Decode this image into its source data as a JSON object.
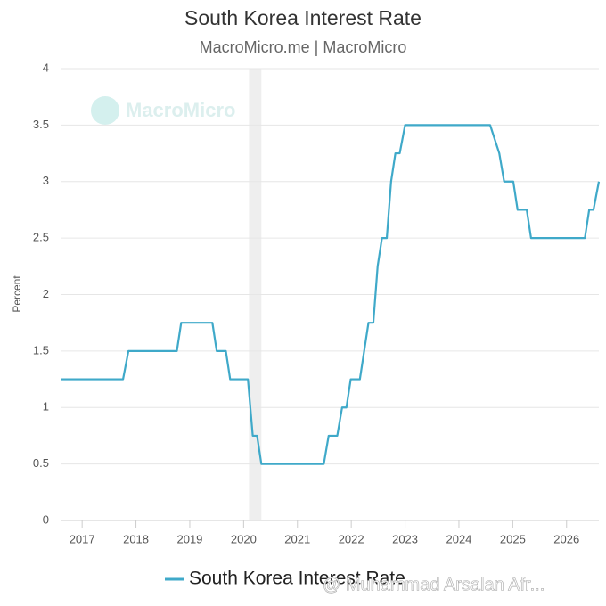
{
  "chart_data": {
    "type": "line",
    "title": "South Korea Interest Rate",
    "subtitle": "MacroMicro.me | MacroMicro",
    "y_label": "Percent",
    "watermarks": [
      "MacroMicro",
      "@ Muhammad Arsalan Afr..."
    ],
    "x": [
      2016.6,
      2017.76,
      2017.86,
      2018.76,
      2018.84,
      2019.42,
      2019.5,
      2019.67,
      2019.75,
      2020.08,
      2020.17,
      2020.25,
      2020.33,
      2021.49,
      2021.58,
      2021.74,
      2021.83,
      2021.91,
      2021.99,
      2022.16,
      2022.32,
      2022.41,
      2022.49,
      2022.57,
      2022.66,
      2022.74,
      2022.82,
      2022.9,
      2023.0,
      2024.58,
      2024.75,
      2024.84,
      2025.01,
      2025.09,
      2025.26,
      2025.34,
      2026.34,
      2026.42,
      2026.5,
      2026.6
    ],
    "series": [
      {
        "name": "South Korea Interest Rate",
        "color": "#3fa9c9",
        "values": [
          1.25,
          1.25,
          1.5,
          1.5,
          1.75,
          1.75,
          1.5,
          1.5,
          1.25,
          1.25,
          0.75,
          0.75,
          0.5,
          0.5,
          0.75,
          0.75,
          1.0,
          1.0,
          1.25,
          1.25,
          1.75,
          1.75,
          2.25,
          2.5,
          2.5,
          3.0,
          3.25,
          3.25,
          3.5,
          3.5,
          3.25,
          3.0,
          3.0,
          2.75,
          2.75,
          2.5,
          2.5,
          2.75,
          2.75,
          3.0
        ]
      }
    ],
    "bands": [
      [
        2020.1,
        2020.33
      ]
    ],
    "band_color": "#eeeeee",
    "xlim": [
      2016.6,
      2026.6
    ],
    "xticks": [
      2017,
      2018,
      2019,
      2020,
      2021,
      2022,
      2023,
      2024,
      2025,
      2026
    ],
    "ylim": [
      0,
      4
    ],
    "yticks": [
      0,
      0.5,
      1,
      1.5,
      2,
      2.5,
      3,
      3.5,
      4
    ],
    "grid": true
  }
}
